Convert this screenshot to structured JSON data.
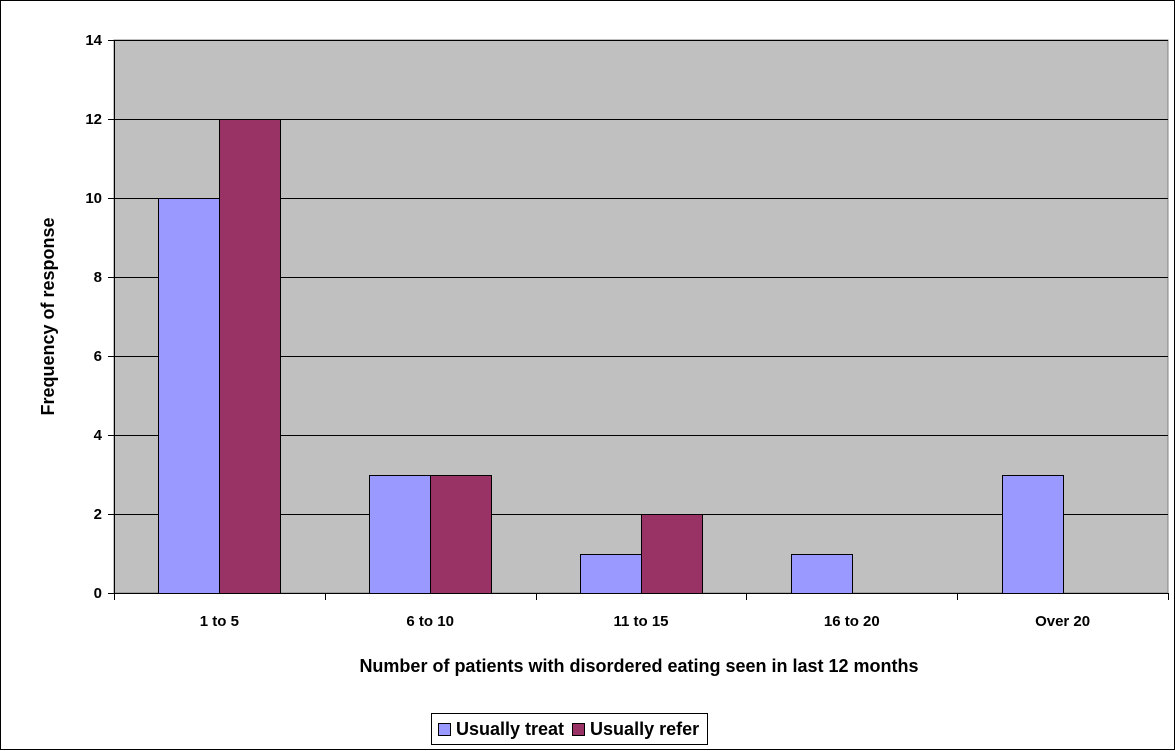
{
  "chart_data": {
    "type": "bar",
    "title": "",
    "xlabel": "Number of patients with disordered eating seen in last 12 months",
    "ylabel": "Frequency of response",
    "categories": [
      "1 to 5",
      "6 to 10",
      "11 to 15",
      "16 to 20",
      "Over 20"
    ],
    "series": [
      {
        "name": "Usually treat",
        "values": [
          10,
          3,
          1,
          1,
          3
        ],
        "color": "#9999ff"
      },
      {
        "name": "Usually refer",
        "values": [
          12,
          3,
          2,
          0,
          0
        ],
        "color": "#993366"
      }
    ],
    "ylim": [
      0,
      14
    ],
    "yticks": [
      0,
      2,
      4,
      6,
      8,
      10,
      12,
      14
    ],
    "grid": true,
    "plot_background": "#c0c0c0",
    "legend_position": "bottom"
  }
}
